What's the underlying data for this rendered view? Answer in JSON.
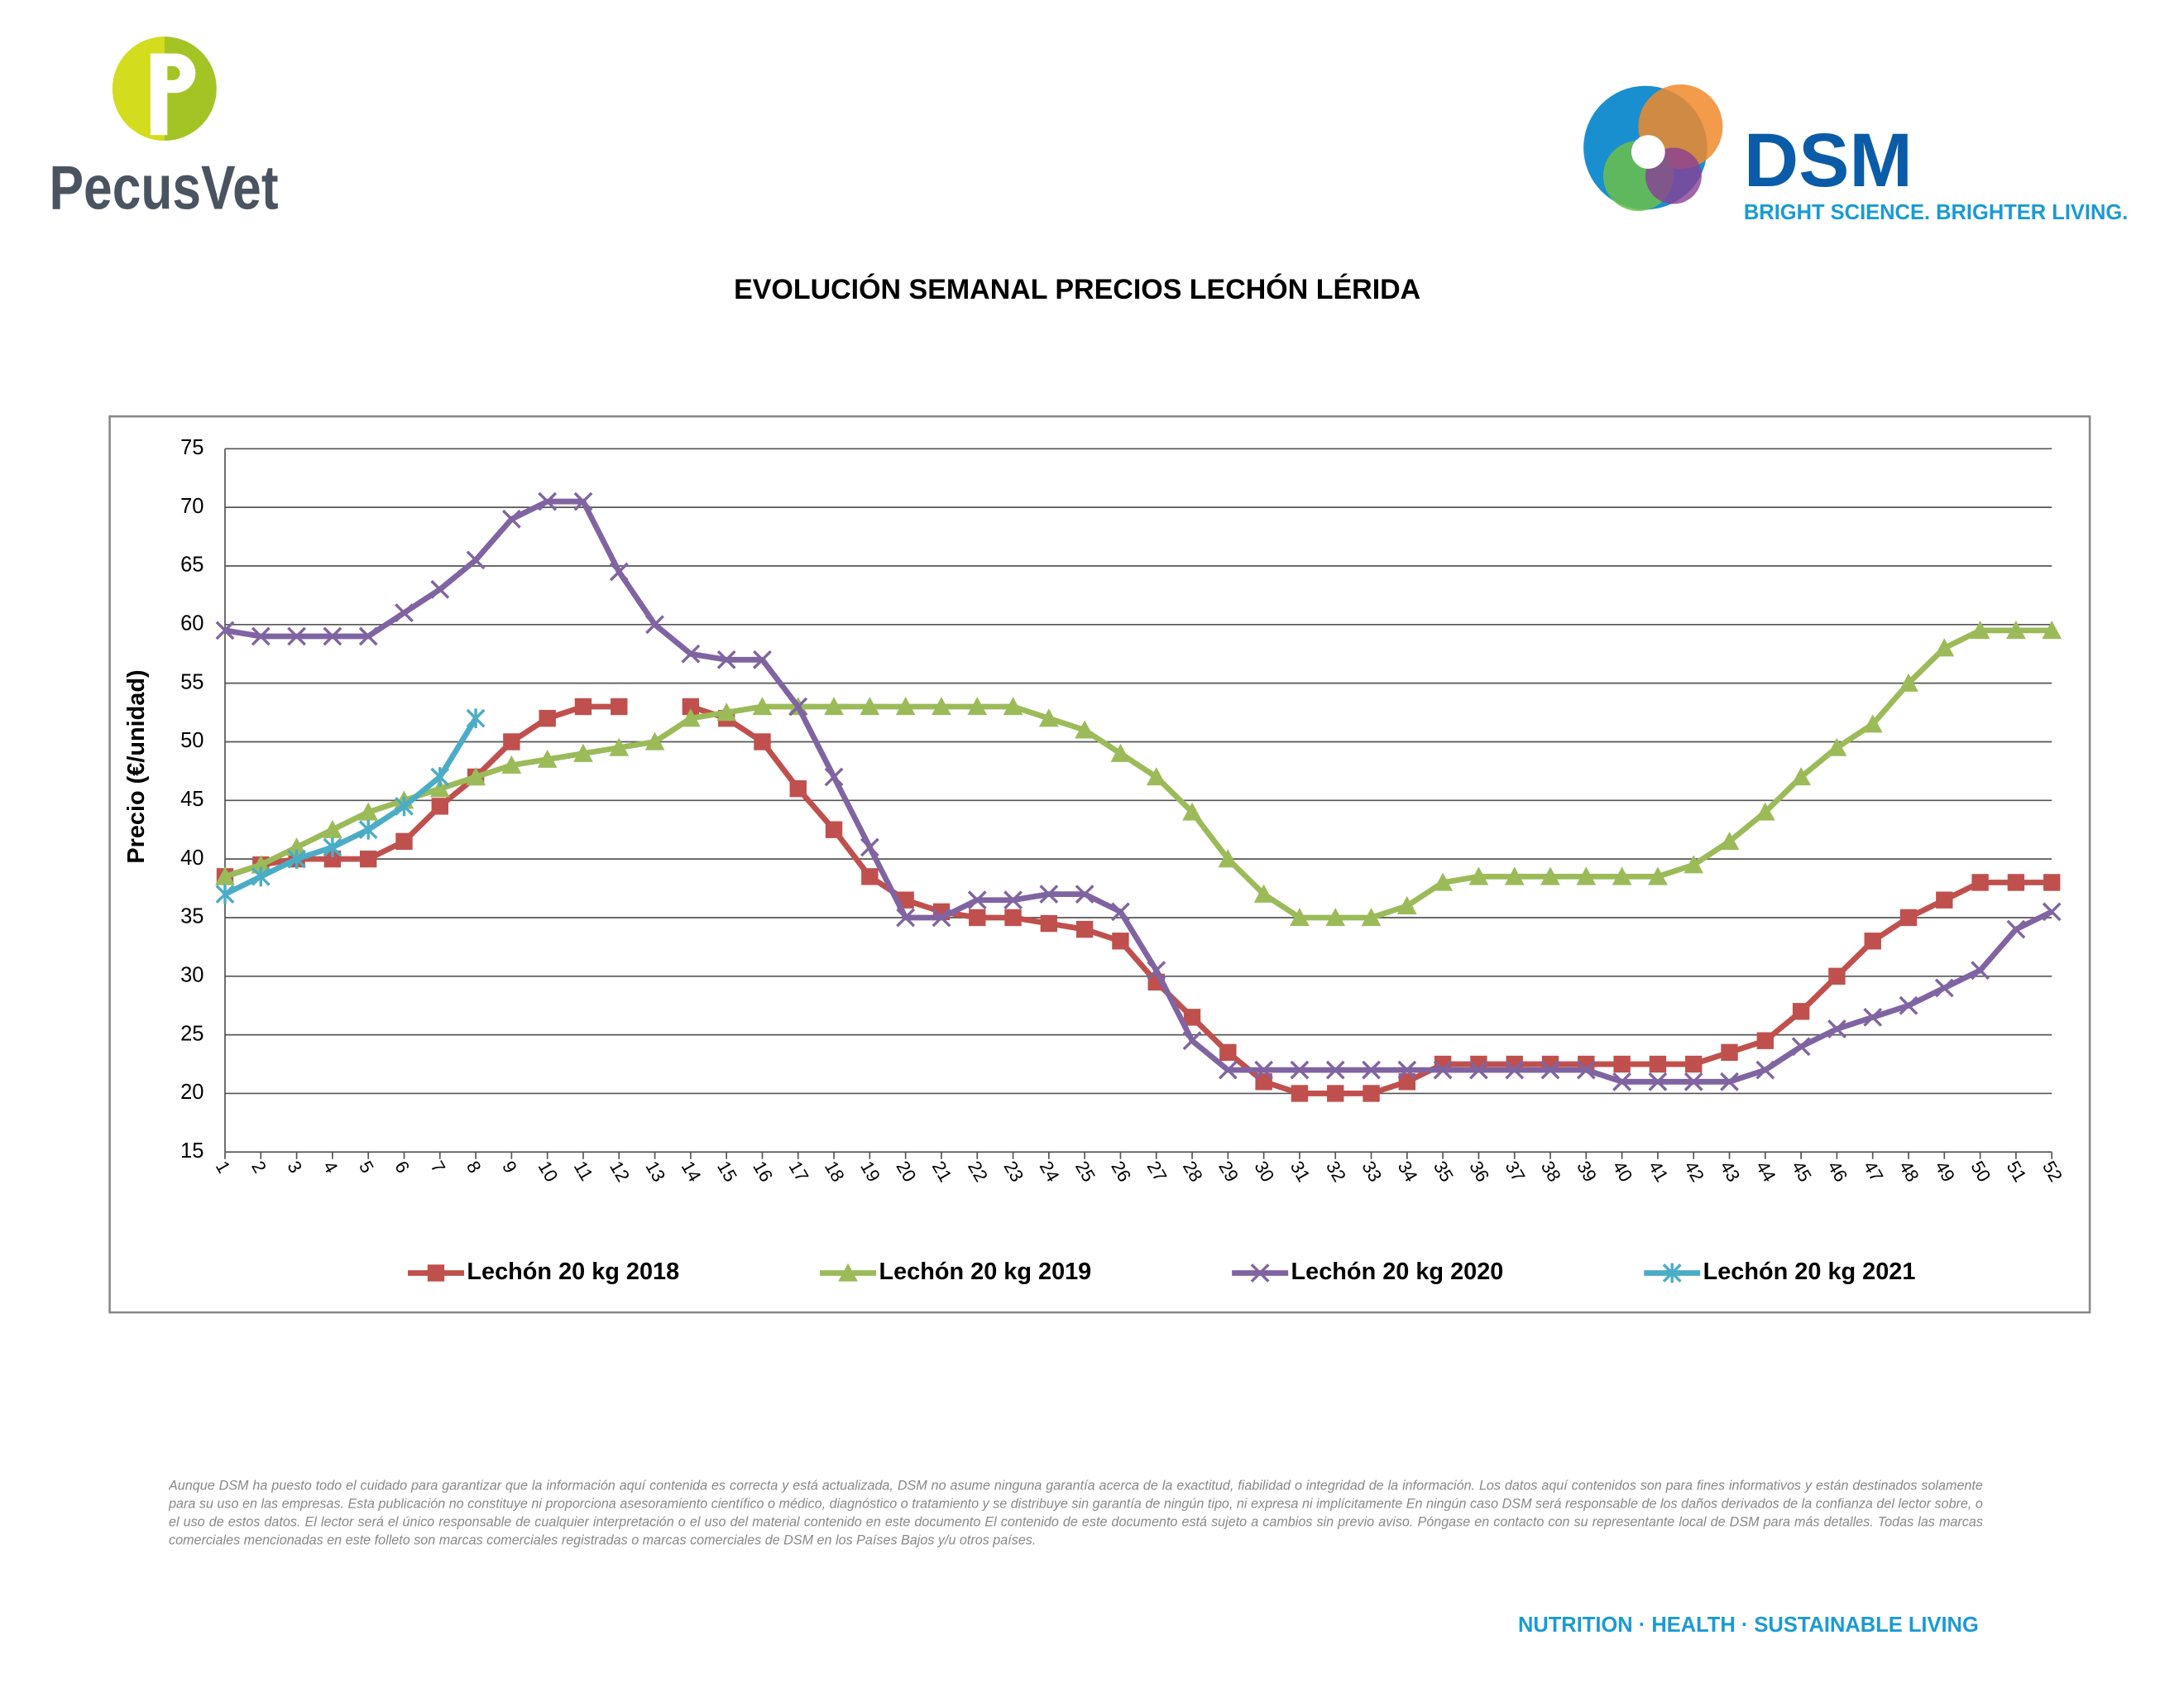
{
  "header": {
    "left_logo": "PecusVet",
    "right_logo": "DSM",
    "tagline": "BRIGHT SCIENCE. BRIGHTER LIVING."
  },
  "chart_data": {
    "type": "line",
    "title": "EVOLUCIÓN SEMANAL PRECIOS LECHÓN LÉRIDA",
    "y_label": "Precio (€/unidad)",
    "categories": [
      "1",
      "2",
      "3",
      "4",
      "5",
      "6",
      "7",
      "8",
      "9",
      "10",
      "11",
      "12",
      "13",
      "14",
      "15",
      "16",
      "17",
      "18",
      "19",
      "20",
      "21",
      "22",
      "23",
      "24",
      "25",
      "26",
      "27",
      "28",
      "29",
      "30",
      "31",
      "32",
      "33",
      "34",
      "35",
      "36",
      "37",
      "38",
      "39",
      "40",
      "41",
      "42",
      "43",
      "44",
      "45",
      "46",
      "47",
      "48",
      "49",
      "50",
      "51",
      "52"
    ],
    "series": [
      {
        "name": "Lechón 20 kg 2018",
        "color": "#c0504d",
        "marker": "square",
        "values": [
          38.5,
          39.5,
          40,
          40,
          40,
          41.5,
          44.5,
          47,
          50,
          52,
          53,
          53,
          null,
          53,
          52,
          50,
          46,
          42.5,
          38.5,
          36.5,
          35.5,
          35,
          35,
          34.5,
          34,
          33,
          29.5,
          26.5,
          23.5,
          21,
          20,
          20,
          20,
          21,
          22.5,
          22.5,
          22.5,
          22.5,
          22.5,
          22.5,
          22.5,
          22.5,
          23.5,
          24.5,
          27,
          30,
          33,
          35,
          36.5,
          38,
          38,
          38
        ]
      },
      {
        "name": "Lechón 20 kg 2019",
        "color": "#9bbb59",
        "marker": "triangle",
        "values": [
          38.5,
          39.5,
          41,
          42.5,
          44,
          45,
          46,
          47,
          48,
          48.5,
          49,
          49.5,
          50,
          52,
          52.5,
          53,
          53,
          53,
          53,
          53,
          53,
          53,
          53,
          52,
          51,
          49,
          47,
          44,
          40,
          37,
          35,
          35,
          35,
          36,
          38,
          38.5,
          38.5,
          38.5,
          38.5,
          38.5,
          38.5,
          39.5,
          41.5,
          44,
          47,
          49.5,
          51.5,
          55,
          58,
          59.5,
          59.5,
          59.5
        ]
      },
      {
        "name": "Lechón 20 kg 2020",
        "color": "#8064a2",
        "marker": "x",
        "values": [
          59.5,
          59,
          59,
          59,
          59,
          61,
          63,
          65.5,
          69,
          70.5,
          70.5,
          64.5,
          60,
          57.5,
          57,
          57,
          53,
          47,
          41,
          35,
          35,
          36.5,
          36.5,
          37,
          37,
          35.5,
          30.5,
          24.5,
          22,
          22,
          22,
          22,
          22,
          22,
          22,
          22,
          22,
          22,
          22,
          21,
          21,
          21,
          21,
          22,
          24,
          25.5,
          26.5,
          27.5,
          29,
          30.5,
          34,
          35.5
        ]
      },
      {
        "name": "Lechón 20 kg 2021",
        "color": "#4bacc6",
        "marker": "star",
        "values": [
          37,
          38.5,
          40,
          41,
          42.5,
          44.5,
          47,
          52,
          null,
          null,
          null,
          null,
          null,
          null,
          null,
          null,
          null,
          null,
          null,
          null,
          null,
          null,
          null,
          null,
          null,
          null,
          null,
          null,
          null,
          null,
          null,
          null,
          null,
          null,
          null,
          null,
          null,
          null,
          null,
          null,
          null,
          null,
          null,
          null,
          null,
          null,
          null,
          null,
          null,
          null,
          null,
          null
        ]
      }
    ],
    "ylim": [
      15,
      75
    ],
    "yticks": [
      15,
      20,
      25,
      30,
      35,
      40,
      45,
      50,
      55,
      60,
      65,
      70,
      75
    ],
    "grid": true,
    "legend": "bottom"
  },
  "footer": {
    "disclaimer": "Aunque DSM ha puesto todo el cuidado para garantizar que la información aquí contenida es correcta y está actualizada, DSM no asume ninguna garantía acerca de la exactitud, fiabilidad o integridad de la información. Los datos aquí contenidos son para fines informativos y están destinados solamente para su uso en las empresas. Esta publicación no constituye ni proporciona asesoramiento científico o médico, diagnóstico o tratamiento y se distribuye sin garantía de ningún tipo, ni expresa ni implícitamente En ningún caso DSM será responsable de los daños derivados de la confianza del lector sobre, o el uso de estos datos. El lector será el único responsable de cualquier interpretación o el uso del material contenido en este documento El contenido de este documento está sujeto a cambios sin previo aviso. Póngase en contacto con su representante local de DSM para más detalles. Todas las marcas comerciales mencionadas en este folleto son marcas comerciales registradas o marcas comerciales de DSM en los Países Bajos y/u otros países.",
    "slogan": "NUTRITION · HEALTH · SUSTAINABLE LIVING"
  }
}
